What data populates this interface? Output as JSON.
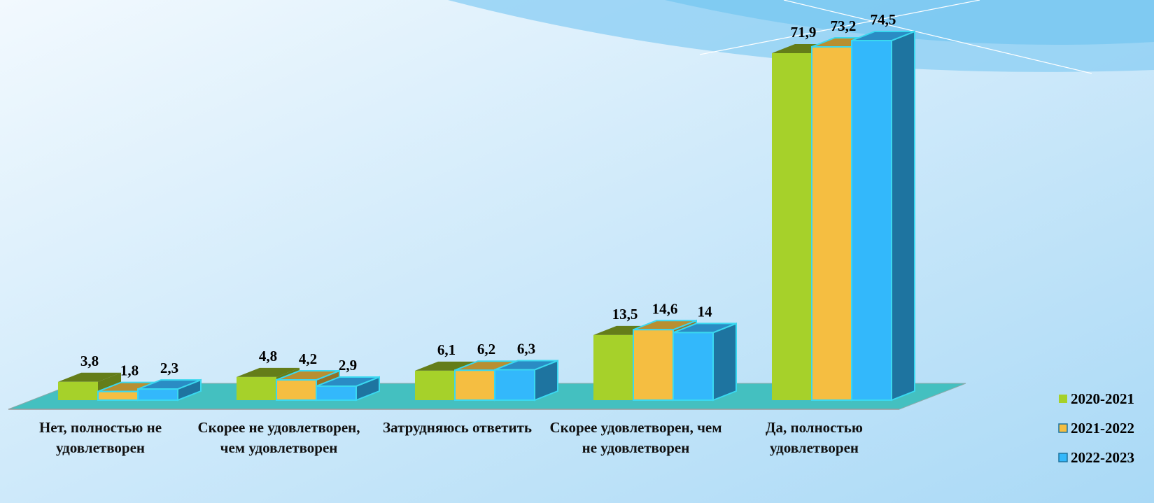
{
  "chart_data": {
    "type": "bar3d",
    "categories": [
      "Нет, полностью не удовлетворен",
      "Скорее не удовлетворен, чем удовлетворен",
      "Затрудняюсь ответить",
      "Скорее удовлетворен, чем не удовлетворен",
      "Да, полностью удовлетворен"
    ],
    "series": [
      {
        "name": "2020-2021",
        "color": "#a6d12a",
        "values": [
          3.8,
          4.8,
          6.1,
          13.5,
          71.9
        ],
        "value_labels": [
          "3,8",
          "4,8",
          "6,1",
          "13,5",
          "71,9"
        ]
      },
      {
        "name": "2021-2022",
        "color": "#f5be41",
        "values": [
          1.8,
          4.2,
          6.2,
          14.6,
          73.2
        ],
        "value_labels": [
          "1,8",
          "4,2",
          "6,2",
          "14,6",
          "73,2"
        ]
      },
      {
        "name": "2022-2023",
        "color": "#33b8fb",
        "values": [
          2.3,
          2.9,
          6.3,
          14,
          74.5
        ],
        "value_labels": [
          "2,3",
          "2,9",
          "6,3",
          "14",
          "74,5"
        ]
      }
    ],
    "legend": "right"
  }
}
